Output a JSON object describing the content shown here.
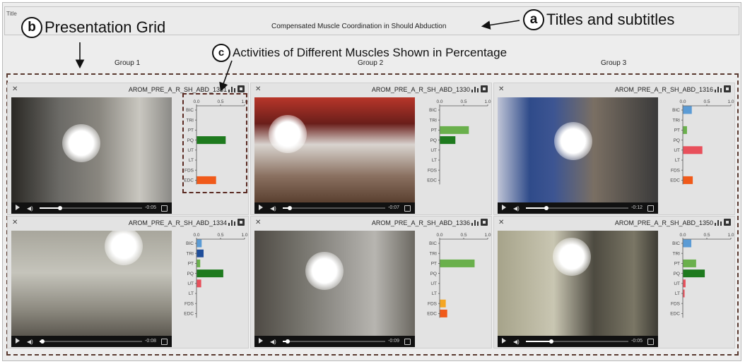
{
  "header": {
    "title_label": "Title",
    "main_title": "Compensated Muscle Coordination in Should Abduction"
  },
  "groups": [
    "Group 1",
    "Group 2",
    "Group 3"
  ],
  "annotations": {
    "a": {
      "letter": "a",
      "text": "Titles and subtitles"
    },
    "b": {
      "letter": "b",
      "text": "Presentation Grid"
    },
    "c": {
      "letter": "c",
      "text": "Activities of Different Muscles Shown in Percentage"
    }
  },
  "chart_axis": {
    "ticks": [
      "0.0",
      "0.5",
      "1.0"
    ],
    "muscles": [
      "BIC",
      "TRI",
      "PT",
      "PQ",
      "UT",
      "LT",
      "FDS",
      "EDC"
    ]
  },
  "muscle_colors": {
    "BIC": "#5b9bd5",
    "TRI": "#1f4e9a",
    "PT": "#6ab04c",
    "PQ": "#1e7a1e",
    "UT": "#e8505b",
    "LT": "#e8505b",
    "FDS": "#f5a623",
    "EDC": "#f05a1a"
  },
  "panels": [
    {
      "title": "AROM_PRE_A_R_SH_ABD_1331",
      "time": "-0:05",
      "progress": 0.2,
      "chart_data": {
        "type": "bar",
        "categories": [
          "BIC",
          "TRI",
          "PT",
          "PQ",
          "UT",
          "LT",
          "FDS",
          "EDC"
        ],
        "values": [
          0,
          0,
          0,
          0.6,
          0,
          0,
          0,
          0.4
        ],
        "xlim": [
          0,
          1
        ]
      }
    },
    {
      "title": "AROM_PRE_A_R_SH_ABD_1330",
      "time": "-0:07",
      "progress": 0.07,
      "chart_data": {
        "type": "bar",
        "categories": [
          "BIC",
          "TRI",
          "PT",
          "PQ",
          "UT",
          "LT",
          "FDS",
          "EDC"
        ],
        "values": [
          0,
          0,
          0.6,
          0.32,
          0,
          0,
          0,
          0
        ],
        "xlim": [
          0,
          1
        ]
      }
    },
    {
      "title": "AROM_PRE_A_R_SH_ABD_1316",
      "time": "-0:12",
      "progress": 0.2,
      "chart_data": {
        "type": "bar",
        "categories": [
          "BIC",
          "TRI",
          "PT",
          "PQ",
          "UT",
          "LT",
          "FDS",
          "EDC"
        ],
        "values": [
          0.18,
          0,
          0.08,
          0,
          0.4,
          0,
          0,
          0.2
        ],
        "xlim": [
          0,
          1
        ]
      }
    },
    {
      "title": "AROM_PRE_A_R_SH_ABD_1334",
      "time": "-0:08",
      "progress": 0.03,
      "chart_data": {
        "type": "bar",
        "categories": [
          "BIC",
          "TRI",
          "PT",
          "PQ",
          "UT",
          "LT",
          "FDS",
          "EDC"
        ],
        "values": [
          0.1,
          0.14,
          0.07,
          0.55,
          0.09,
          0,
          0,
          0
        ],
        "xlim": [
          0,
          1
        ]
      }
    },
    {
      "title": "AROM_PRE_A_R_SH_ABD_1336",
      "time": "-0:09",
      "progress": 0.05,
      "chart_data": {
        "type": "bar",
        "categories": [
          "BIC",
          "TRI",
          "PT",
          "PQ",
          "UT",
          "LT",
          "FDS",
          "EDC"
        ],
        "values": [
          0,
          0,
          0.72,
          0,
          0,
          0,
          0.12,
          0.15
        ],
        "xlim": [
          0,
          1
        ]
      }
    },
    {
      "title": "AROM_PRE_A_R_SH_ABD_1350",
      "time": "-0:05",
      "progress": 0.25,
      "chart_data": {
        "type": "bar",
        "categories": [
          "BIC",
          "TRI",
          "PT",
          "PQ",
          "UT",
          "LT",
          "FDS",
          "EDC"
        ],
        "values": [
          0.17,
          0,
          0.27,
          0.45,
          0.05,
          0.03,
          0,
          0
        ],
        "xlim": [
          0,
          1
        ]
      }
    }
  ]
}
